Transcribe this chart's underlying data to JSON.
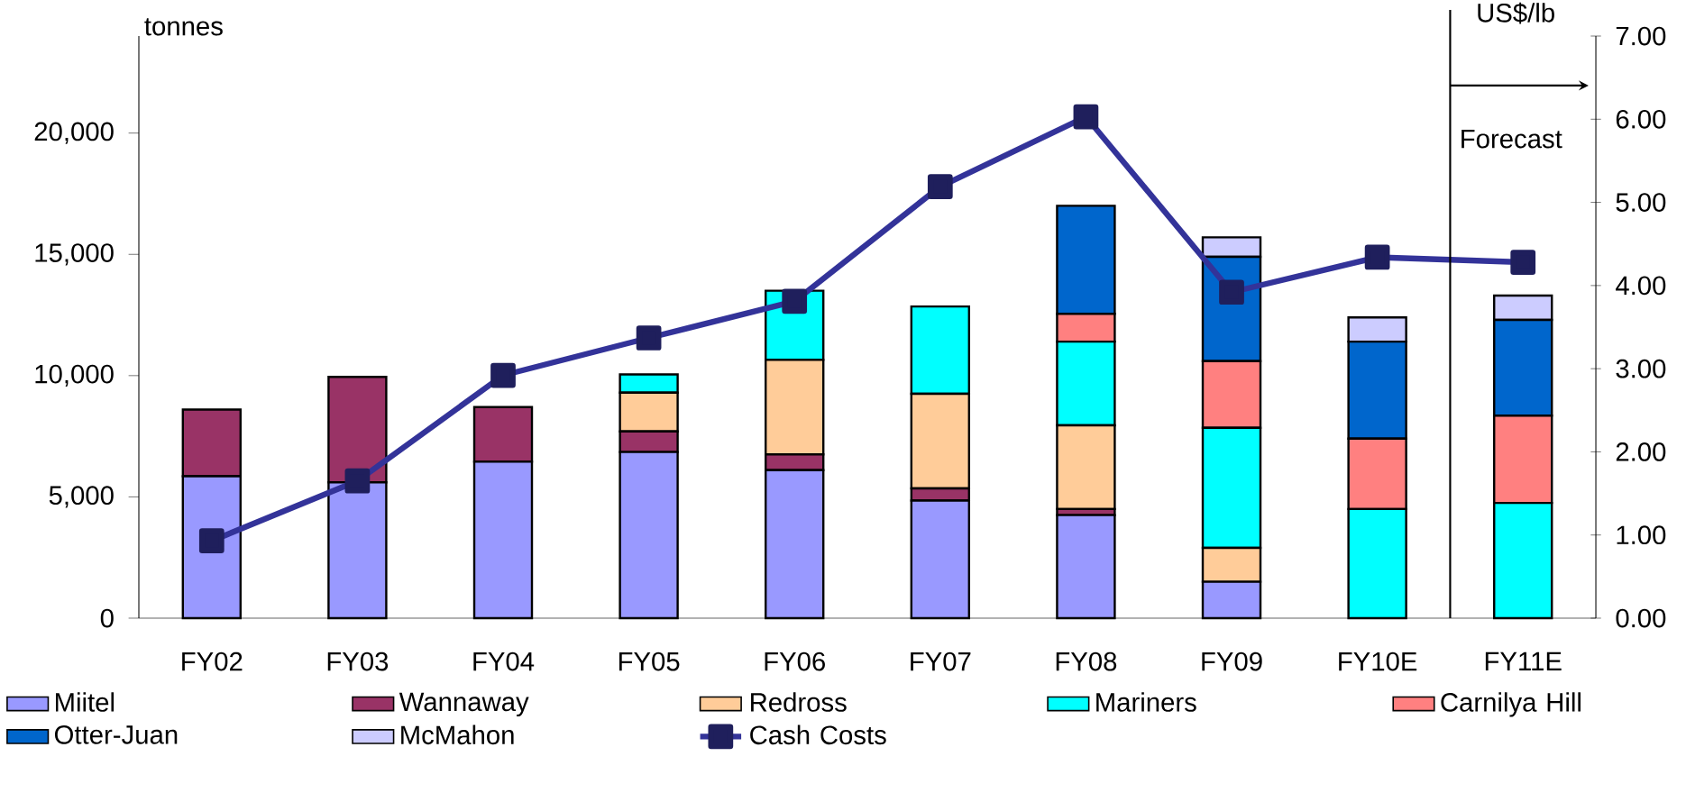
{
  "chart_data": {
    "type": "bar",
    "stacked": true,
    "ylabel": "tonnes",
    "y2label": "US$/lb",
    "categories": [
      "FY02",
      "FY03",
      "FY04",
      "FY05",
      "FY06",
      "FY07",
      "FY08",
      "FY09",
      "FY10E",
      "FY11E"
    ],
    "series": [
      {
        "name": "Miitel",
        "color": "#9999ff",
        "values": [
          5850,
          5600,
          6450,
          6850,
          6100,
          4850,
          4250,
          1500,
          0,
          0
        ]
      },
      {
        "name": "Wannaway",
        "color": "#993366",
        "values": [
          2750,
          4350,
          2250,
          850,
          650,
          500,
          250,
          0,
          0,
          0
        ]
      },
      {
        "name": "Redross",
        "color": "#ffcc99",
        "values": [
          0,
          0,
          0,
          1600,
          3900,
          3900,
          3450,
          1400,
          0,
          0
        ]
      },
      {
        "name": "Mariners",
        "color": "#00ffff",
        "values": [
          0,
          0,
          0,
          750,
          2850,
          3600,
          3450,
          4950,
          4500,
          4750
        ]
      },
      {
        "name": "Carnilya Hill",
        "color": "#ff8080",
        "values": [
          0,
          0,
          0,
          0,
          0,
          0,
          1150,
          2750,
          2900,
          3600
        ]
      },
      {
        "name": "Otter-Juan",
        "color": "#0066cc",
        "values": [
          0,
          0,
          0,
          0,
          0,
          0,
          4450,
          4300,
          4000,
          3950
        ]
      },
      {
        "name": "McMahon",
        "color": "#ccccff",
        "values": [
          0,
          0,
          0,
          0,
          0,
          0,
          0,
          800,
          1000,
          1000
        ]
      },
      {
        "name": "Cash Costs",
        "type": "line",
        "axis": "y2",
        "color": "#333399",
        "marker": "square",
        "values": [
          0.93,
          1.65,
          2.92,
          3.37,
          3.81,
          5.19,
          6.03,
          3.92,
          4.34,
          4.28
        ]
      }
    ],
    "ylim": [
      0,
      24000
    ],
    "yticks": [
      {
        "value": 0,
        "label": "0"
      },
      {
        "value": 5000,
        "label": "5,000"
      },
      {
        "value": 10000,
        "label": "10,000"
      },
      {
        "value": 15000,
        "label": "15,000"
      },
      {
        "value": 20000,
        "label": "20,000"
      }
    ],
    "y2lim": [
      0,
      7
    ],
    "y2ticks": [
      {
        "value": 0,
        "label": "0.00"
      },
      {
        "value": 1,
        "label": "1.00"
      },
      {
        "value": 2,
        "label": "2.00"
      },
      {
        "value": 3,
        "label": "3.00"
      },
      {
        "value": 4,
        "label": "4.00"
      },
      {
        "value": 5,
        "label": "5.00"
      },
      {
        "value": 6,
        "label": "6.00"
      },
      {
        "value": 7,
        "label": "7.00"
      }
    ],
    "annotations": [
      "Forecast"
    ],
    "grid": false,
    "legend": "bottom"
  }
}
